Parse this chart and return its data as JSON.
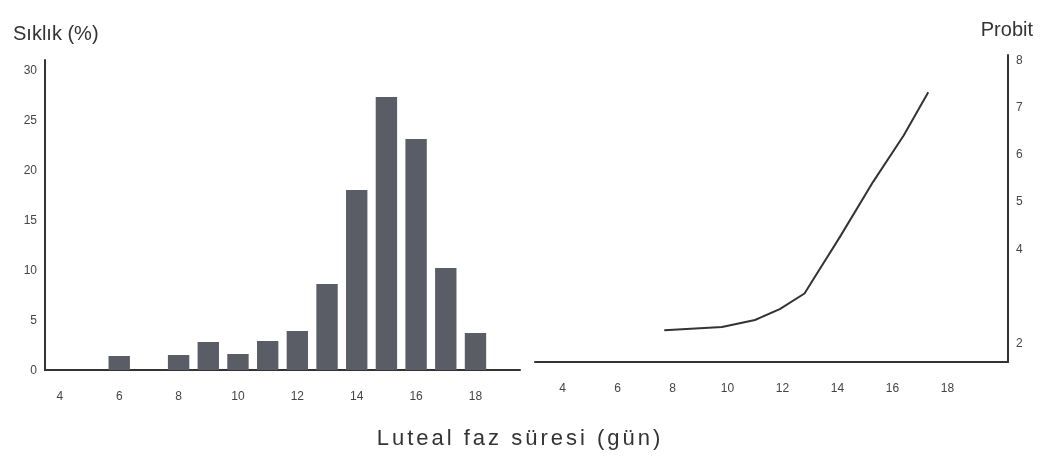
{
  "chart_data": [
    {
      "type": "bar",
      "ylabel": "Sıklık (%)",
      "xlabel": "Luteal faz süresi (gün)",
      "categories": [
        "4",
        null,
        "6",
        null,
        "8",
        null,
        "10",
        null,
        "12",
        null,
        "14",
        null,
        "16",
        null,
        "18",
        null
      ],
      "values": [
        null,
        null,
        1.4,
        null,
        1.5,
        2.8,
        1.6,
        2.9,
        3.9,
        8.6,
        18.0,
        27.3,
        23.1,
        10.2,
        3.7,
        null
      ],
      "color": "#5a5d66",
      "ylim": [
        0,
        31
      ],
      "yticks": [
        0,
        5,
        10,
        15,
        20,
        25,
        30
      ],
      "grid": false
    },
    {
      "type": "line",
      "ylabel": "Probit",
      "x": [
        7.7,
        9.8,
        11.0,
        11.9,
        12.8,
        13.1,
        14.1,
        15.3,
        16.4,
        17.3
      ],
      "values": [
        2.27,
        2.34,
        2.49,
        2.72,
        3.05,
        3.33,
        4.26,
        5.42,
        6.39,
        7.31
      ],
      "color": "#333333",
      "xlim": [
        3,
        20.2
      ],
      "xticks": [
        4,
        6,
        8,
        10,
        12,
        14,
        16,
        18
      ],
      "ylim": [
        1.6,
        8.1
      ],
      "yticks": [
        2,
        4,
        5,
        6,
        7,
        8
      ],
      "grid": false,
      "marker": "none",
      "line_style": "solid"
    }
  ]
}
